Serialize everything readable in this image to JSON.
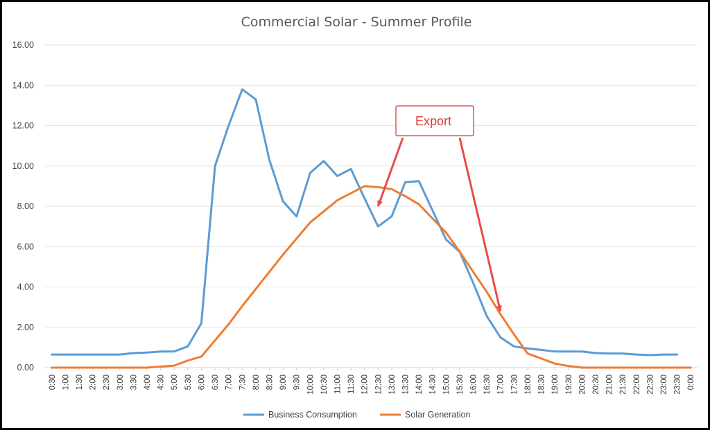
{
  "chart_data": {
    "type": "line",
    "title": "Commercial Solar - Summer Profile",
    "xlabel": "",
    "ylabel": "",
    "ylim": [
      0,
      16
    ],
    "yticks": [
      "0.00",
      "2.00",
      "4.00",
      "6.00",
      "8.00",
      "10.00",
      "12.00",
      "14.00",
      "16.00"
    ],
    "grid": true,
    "legend_position": "bottom",
    "categories": [
      "0:30",
      "1:00",
      "1:30",
      "2:00",
      "2:30",
      "3:00",
      "3:30",
      "4:00",
      "4:30",
      "5:00",
      "5:30",
      "6:00",
      "6:30",
      "7:00",
      "7:30",
      "8:00",
      "8:30",
      "9:00",
      "9:30",
      "10:00",
      "10:30",
      "11:00",
      "11:30",
      "12:00",
      "12:30",
      "13:00",
      "13:30",
      "14:00",
      "14:30",
      "15:00",
      "15:30",
      "16:00",
      "16:30",
      "17:00",
      "17:30",
      "18:00",
      "18:30",
      "19:00",
      "19:30",
      "20:00",
      "20:30",
      "21:00",
      "21:30",
      "22:00",
      "22:30",
      "23:00",
      "23:30",
      "0:00"
    ],
    "series": [
      {
        "name": "Business Consumption",
        "color": "#5b9bd5",
        "values": [
          0.65,
          0.65,
          0.65,
          0.65,
          0.65,
          0.65,
          0.72,
          0.75,
          0.8,
          0.8,
          1.05,
          2.2,
          10.0,
          12.0,
          13.8,
          13.3,
          10.3,
          8.25,
          7.5,
          9.65,
          10.25,
          9.5,
          9.85,
          8.4,
          7.0,
          7.5,
          9.2,
          9.25,
          7.8,
          6.35,
          5.75,
          4.2,
          2.55,
          1.5,
          1.05,
          0.95,
          0.88,
          0.8,
          0.8,
          0.8,
          0.72,
          0.7,
          0.7,
          0.65,
          0.62,
          0.65,
          0.65,
          null
        ]
      },
      {
        "name": "Solar Generation",
        "color": "#ed7d31",
        "values": [
          0,
          0,
          0,
          0,
          0,
          0,
          0,
          0,
          0.05,
          0.1,
          0.35,
          0.55,
          1.35,
          2.15,
          3.05,
          3.9,
          4.75,
          5.6,
          6.4,
          7.2,
          7.75,
          8.3,
          8.65,
          9.0,
          8.95,
          8.85,
          8.5,
          8.1,
          7.4,
          6.7,
          5.75,
          4.75,
          3.75,
          2.65,
          1.65,
          0.7,
          0.45,
          0.2,
          0.08,
          0,
          0,
          0,
          0,
          0,
          0,
          0,
          0,
          0
        ]
      }
    ],
    "annotation": {
      "label": "Export",
      "color": "#e84b4b",
      "arrow_targets": [
        {
          "x": "12:30",
          "y": 8.0
        },
        {
          "x": "17:00",
          "y": 2.8
        }
      ]
    }
  }
}
